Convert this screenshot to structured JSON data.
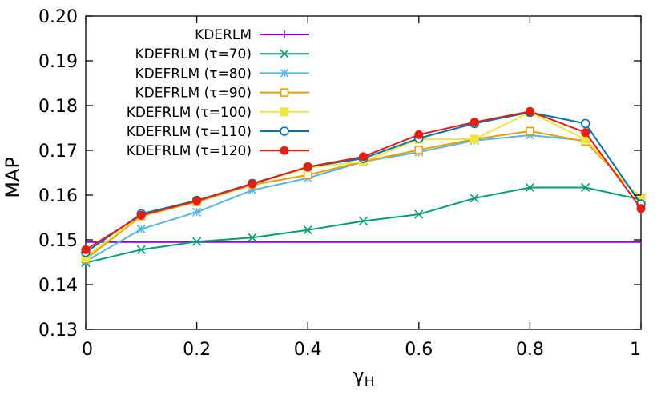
{
  "chart_data": {
    "type": "line",
    "title": "",
    "xlabel": "γ",
    "xlabel_subscript": "H",
    "ylabel": "MAP",
    "xlim": [
      0,
      1
    ],
    "ylim": [
      0.13,
      0.2
    ],
    "grid": false,
    "legend_position": "top-left",
    "x_ticks": [
      0,
      0.2,
      0.4,
      0.6,
      0.8,
      1
    ],
    "x_tick_labels": [
      "0",
      "0.2",
      "0.4",
      "0.6",
      "0.8",
      "1"
    ],
    "y_ticks": [
      0.13,
      0.14,
      0.15,
      0.16,
      0.17,
      0.18,
      0.19,
      0.2
    ],
    "y_tick_labels": [
      "0.13",
      "0.14",
      "0.15",
      "0.16",
      "0.17",
      "0.18",
      "0.19",
      "0.20"
    ],
    "x": [
      0,
      0.1,
      0.2,
      0.3,
      0.4,
      0.5,
      0.6,
      0.7,
      0.8,
      0.9,
      1
    ],
    "series": [
      {
        "name": "KDERLM",
        "color": "#9400d3",
        "marker": "plus",
        "values": [
          0.1495,
          0.1495,
          0.1495,
          0.1495,
          0.1495,
          0.1495,
          0.1495,
          0.1495,
          0.1495,
          0.1495,
          0.1495
        ],
        "show_markers": false
      },
      {
        "name": "KDEFRLM (τ=70)",
        "color": "#009e73",
        "marker": "cross",
        "values": [
          0.1449,
          0.1478,
          0.1496,
          0.1505,
          0.1522,
          0.1542,
          0.1557,
          0.1593,
          0.1617,
          0.1617,
          0.159
        ]
      },
      {
        "name": "KDEFRLM (τ=80)",
        "color": "#56b4e9",
        "marker": "star",
        "values": [
          0.1452,
          0.1524,
          0.1562,
          0.1611,
          0.1638,
          0.1675,
          0.1696,
          0.1722,
          0.1734,
          0.1722,
          0.159
        ]
      },
      {
        "name": "KDEFRLM (τ=90)",
        "color": "#e69f00",
        "marker": "square-open",
        "values": [
          0.1457,
          0.1553,
          0.1585,
          0.1623,
          0.1645,
          0.1675,
          0.1701,
          0.1725,
          0.1743,
          0.172,
          0.1592
        ]
      },
      {
        "name": "KDEFRLM (τ=100)",
        "color": "#f0e442",
        "marker": "square-filled",
        "values": [
          0.1462,
          0.1555,
          0.1587,
          0.1625,
          0.1661,
          0.1675,
          0.1725,
          0.1725,
          0.1785,
          0.1725,
          0.159
        ]
      },
      {
        "name": "KDEFRLM (τ=110)",
        "color": "#0072b2",
        "marker": "circle-open",
        "values": [
          0.1472,
          0.1558,
          0.1588,
          0.1626,
          0.1663,
          0.1682,
          0.1727,
          0.176,
          0.1785,
          0.176,
          0.158
        ]
      },
      {
        "name": "KDEFRLM (τ=120)",
        "color": "#e51e10",
        "marker": "circle-filled",
        "values": [
          0.1478,
          0.1555,
          0.1587,
          0.1625,
          0.1663,
          0.1686,
          0.1735,
          0.1763,
          0.1787,
          0.174,
          0.157
        ]
      }
    ]
  }
}
